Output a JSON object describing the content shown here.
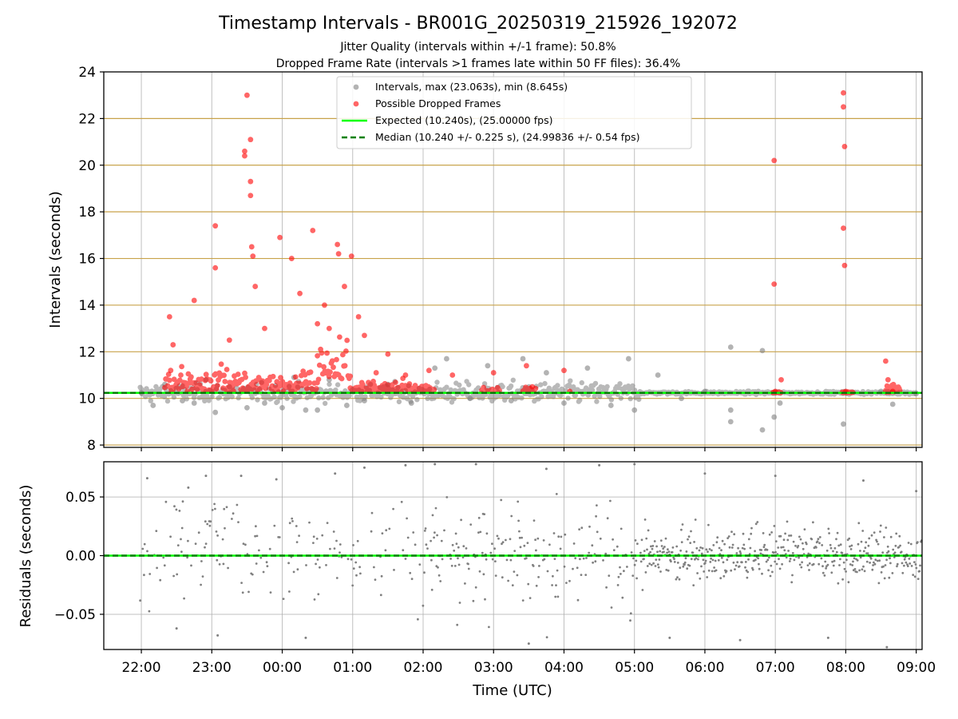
{
  "figure": {
    "title": "Timestamp Intervals - BR001G_20250319_215926_192072",
    "subtitle_line1": "Jitter Quality (intervals within +/-1 frame): 50.8%",
    "subtitle_line2": "Dropped Frame Rate (intervals >1 frames late within 50 FF files): 36.4%"
  },
  "colors": {
    "interval_points": "#808080",
    "dropped_points": "#ff0000",
    "expected_line": "#00ff00",
    "median_line": "#008000",
    "frame_band_line": "#c8a24a",
    "grid": "#b0b0b0"
  },
  "chart_data": [
    {
      "type": "scatter",
      "panel": "intervals",
      "ylabel": "Intervals (seconds)",
      "ylim": [
        7.9,
        24
      ],
      "yticks": [
        "8",
        "10",
        "12",
        "14",
        "16",
        "18",
        "20",
        "22",
        "24"
      ],
      "xlim": [
        "21:28",
        "09:05"
      ],
      "xticks": [
        "22:00",
        "23:00",
        "00:00",
        "01:00",
        "02:00",
        "03:00",
        "04:00",
        "05:00",
        "06:00",
        "07:00",
        "08:00",
        "09:00"
      ],
      "grid": true,
      "legend_placement": "upper-center",
      "legend": [
        "Intervals, max (23.063s), min (8.645s)",
        "Possible Dropped Frames",
        "Expected (10.240s), (25.00000 fps)",
        "Median (10.240 +/- 0.225 s), (24.99836 +/- 0.54 fps)"
      ],
      "expected_interval": 10.24,
      "median_interval": 10.24,
      "frame_band_lines": [
        8.0,
        10.0,
        12.0,
        14.0,
        16.0,
        18.0,
        20.0,
        22.0
      ],
      "series": [
        {
          "name": "Intervals, max (23.063s), min (8.645s)",
          "style": "grey dots",
          "points": [
            [
              "22:00",
              10.24
            ],
            [
              "22:10",
              9.7
            ],
            [
              "22:20",
              10.6
            ],
            [
              "22:35",
              9.9
            ],
            [
              "22:45",
              9.8
            ],
            [
              "22:55",
              10.8
            ],
            [
              "23:03",
              9.4
            ],
            [
              "23:15",
              10.5
            ],
            [
              "23:30",
              9.6
            ],
            [
              "23:45",
              9.8
            ],
            [
              "00:00",
              9.6
            ],
            [
              "00:10",
              10.9
            ],
            [
              "00:20",
              9.5
            ],
            [
              "00:30",
              9.5
            ],
            [
              "00:40",
              10.8
            ],
            [
              "00:55",
              9.7
            ],
            [
              "01:10",
              9.9
            ],
            [
              "01:30",
              10.6
            ],
            [
              "01:50",
              9.8
            ],
            [
              "02:10",
              11.3
            ],
            [
              "02:20",
              11.7
            ],
            [
              "02:40",
              10.0
            ],
            [
              "02:55",
              11.4
            ],
            [
              "03:15",
              9.9
            ],
            [
              "03:25",
              11.7
            ],
            [
              "03:45",
              11.1
            ],
            [
              "04:00",
              9.8
            ],
            [
              "04:20",
              11.3
            ],
            [
              "04:40",
              9.7
            ],
            [
              "04:55",
              11.7
            ],
            [
              "05:00",
              9.5
            ],
            [
              "05:20",
              11.0
            ],
            [
              "05:40",
              10.0
            ],
            [
              "06:00",
              10.3
            ],
            [
              "06:22",
              12.2
            ],
            [
              "06:22",
              9.5
            ],
            [
              "06:22",
              9.0
            ],
            [
              "06:49",
              12.05
            ],
            [
              "06:49",
              8.65
            ],
            [
              "06:59",
              9.2
            ],
            [
              "07:04",
              9.8
            ],
            [
              "07:58",
              8.9
            ],
            [
              "08:30",
              10.3
            ],
            [
              "08:40",
              9.75
            ],
            [
              "09:00",
              10.2
            ]
          ]
        },
        {
          "name": "Possible Dropped Frames",
          "style": "red dots",
          "points": [
            [
              "22:24",
              13.5
            ],
            [
              "22:27",
              12.3
            ],
            [
              "22:25",
              11.2
            ],
            [
              "22:45",
              14.2
            ],
            [
              "23:03",
              17.4
            ],
            [
              "23:03",
              15.6
            ],
            [
              "23:15",
              12.5
            ],
            [
              "23:28",
              20.6
            ],
            [
              "23:28",
              20.4
            ],
            [
              "23:30",
              23.0
            ],
            [
              "23:33",
              18.7
            ],
            [
              "23:33",
              19.3
            ],
            [
              "23:33",
              21.1
            ],
            [
              "23:34",
              16.5
            ],
            [
              "23:35",
              16.1
            ],
            [
              "23:37",
              14.8
            ],
            [
              "23:45",
              13.0
            ],
            [
              "23:58",
              16.9
            ],
            [
              "00:08",
              16.0
            ],
            [
              "00:15",
              14.5
            ],
            [
              "00:26",
              17.2
            ],
            [
              "00:30",
              13.2
            ],
            [
              "00:36",
              14.0
            ],
            [
              "00:40",
              13.0
            ],
            [
              "00:47",
              16.6
            ],
            [
              "00:48",
              16.2
            ],
            [
              "00:53",
              14.8
            ],
            [
              "00:59",
              16.1
            ],
            [
              "01:05",
              13.5
            ],
            [
              "01:10",
              12.7
            ],
            [
              "01:20",
              11.1
            ],
            [
              "01:30",
              11.9
            ],
            [
              "01:45",
              11.0
            ],
            [
              "02:05",
              11.2
            ],
            [
              "02:25",
              11.0
            ],
            [
              "03:00",
              11.1
            ],
            [
              "03:28",
              11.4
            ],
            [
              "03:33",
              10.5
            ],
            [
              "04:00",
              11.2
            ],
            [
              "04:05",
              10.3
            ],
            [
              "06:59",
              20.2
            ],
            [
              "06:59",
              14.9
            ],
            [
              "07:00",
              10.3
            ],
            [
              "07:05",
              10.8
            ],
            [
              "07:58",
              23.1
            ],
            [
              "07:58",
              22.5
            ],
            [
              "07:59",
              20.8
            ],
            [
              "07:58",
              17.3
            ],
            [
              "07:59",
              15.7
            ],
            [
              "08:00",
              10.3
            ],
            [
              "08:34",
              11.6
            ],
            [
              "08:36",
              10.8
            ],
            [
              "08:40",
              10.3
            ]
          ]
        }
      ]
    },
    {
      "type": "scatter",
      "panel": "residuals",
      "xlabel": "Time (UTC)",
      "ylabel": "Residuals (seconds)",
      "ylim": [
        -0.08,
        0.08
      ],
      "yticks": [
        "−0.05",
        "0.00",
        "0.05"
      ],
      "xticks": [
        "22:00",
        "23:00",
        "00:00",
        "01:00",
        "02:00",
        "03:00",
        "04:00",
        "05:00",
        "06:00",
        "07:00",
        "08:00",
        "09:00"
      ],
      "grid": true,
      "zero_line": 0.0,
      "series": [
        {
          "name": "",
          "style": "small grey dots",
          "points": [
            [
              "22:05",
              0.066
            ],
            [
              "22:30",
              -0.062
            ],
            [
              "22:40",
              0.058
            ],
            [
              "22:55",
              0.068
            ],
            [
              "23:05",
              -0.068
            ],
            [
              "23:25",
              0.068
            ],
            [
              "23:55",
              0.065
            ],
            [
              "00:20",
              -0.07
            ],
            [
              "00:45",
              0.07
            ],
            [
              "01:10",
              0.075
            ],
            [
              "01:45",
              0.077
            ],
            [
              "02:10",
              0.078
            ],
            [
              "02:45",
              0.078
            ],
            [
              "03:30",
              -0.075
            ],
            [
              "03:45",
              0.074
            ],
            [
              "04:30",
              0.077
            ],
            [
              "05:00",
              0.078
            ],
            [
              "05:30",
              -0.07
            ],
            [
              "06:00",
              0.07
            ],
            [
              "06:30",
              -0.072
            ],
            [
              "07:00",
              0.068
            ],
            [
              "07:45",
              -0.07
            ],
            [
              "08:15",
              0.064
            ],
            [
              "08:35",
              -0.078
            ],
            [
              "09:00",
              0.055
            ]
          ]
        }
      ]
    }
  ]
}
